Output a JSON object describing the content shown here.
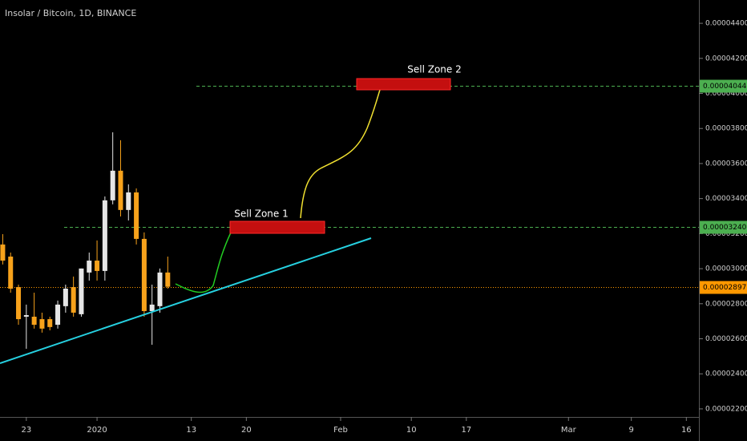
{
  "chart_data": {
    "type": "candlestick",
    "title": "Insolar / Bitcoin, 1D, BINANCE",
    "x": [
      -12,
      -11,
      -10,
      -9,
      -8,
      -7,
      -6,
      -5,
      -4,
      -3,
      -2,
      -1,
      0,
      1,
      2,
      3,
      4,
      5,
      6,
      7,
      8,
      9
    ],
    "open": [
      3.138e-05,
      3.069e-05,
      2.895e-05,
      2.726e-05,
      2.726e-05,
      2.712e-05,
      2.712e-05,
      2.68e-05,
      2.786e-05,
      2.895e-05,
      2.74e-05,
      2.978e-05,
      3.046e-05,
      2.987e-05,
      3.39e-05,
      3.559e-05,
      3.335e-05,
      3.435e-05,
      3.17e-05,
      2.758e-05,
      2.786e-05,
      2.978e-05
    ],
    "high": [
      3.197e-05,
      3.092e-05,
      2.909e-05,
      2.795e-05,
      2.863e-05,
      2.749e-05,
      2.726e-05,
      2.818e-05,
      2.909e-05,
      2.955e-05,
      3.001e-05,
      3.092e-05,
      3.161e-05,
      3.412e-05,
      3.778e-05,
      3.733e-05,
      3.481e-05,
      3.458e-05,
      3.207e-05,
      2.909e-05,
      3.001e-05,
      3.069e-05
    ],
    "low": [
      3.024e-05,
      2.863e-05,
      2.68e-05,
      2.543e-05,
      2.658e-05,
      2.635e-05,
      2.648e-05,
      2.658e-05,
      2.749e-05,
      2.726e-05,
      2.726e-05,
      2.932e-05,
      2.932e-05,
      2.932e-05,
      3.367e-05,
      3.298e-05,
      3.275e-05,
      3.138e-05,
      2.726e-05,
      2.566e-05,
      2.749e-05,
      2.886e-05
    ],
    "close": [
      3.046e-05,
      2.886e-05,
      2.712e-05,
      2.735e-05,
      2.68e-05,
      2.658e-05,
      2.667e-05,
      2.795e-05,
      2.886e-05,
      2.749e-05,
      3.001e-05,
      3.046e-05,
      2.987e-05,
      3.39e-05,
      3.559e-05,
      3.335e-05,
      3.435e-05,
      3.17e-05,
      2.758e-05,
      2.795e-05,
      2.978e-05,
      2.897e-05
    ],
    "up_color": "#e6e6e6",
    "down_color": "#f7a21b",
    "xlim": [
      -12.35,
      76.6
    ],
    "xticks": [
      {
        "value": -9,
        "label": "23"
      },
      {
        "value": 0,
        "label": "2020"
      },
      {
        "value": 12,
        "label": "13"
      },
      {
        "value": 19,
        "label": "20"
      },
      {
        "value": 31,
        "label": "Feb"
      },
      {
        "value": 40,
        "label": "10"
      },
      {
        "value": 47,
        "label": "17"
      },
      {
        "value": 60,
        "label": "Mar"
      },
      {
        "value": 68,
        "label": "9"
      },
      {
        "value": 75,
        "label": "16"
      }
    ],
    "ylim": [
      2.154e-05,
      4.533e-05
    ],
    "yticks": [
      {
        "value": 2.2e-05,
        "label": "0.00002200"
      },
      {
        "value": 2.4e-05,
        "label": "0.00002400"
      },
      {
        "value": 2.6e-05,
        "label": "0.00002600"
      },
      {
        "value": 2.8e-05,
        "label": "0.00002800"
      },
      {
        "value": 3e-05,
        "label": "0.00003000"
      },
      {
        "value": 3.2e-05,
        "label": "0.00003200"
      },
      {
        "value": 3.4e-05,
        "label": "0.00003400"
      },
      {
        "value": 3.6e-05,
        "label": "0.00003600"
      },
      {
        "value": 3.8e-05,
        "label": "0.00003800"
      },
      {
        "value": 4e-05,
        "label": "0.00004000"
      },
      {
        "value": 4.2e-05,
        "label": "0.00004200"
      },
      {
        "value": 4.4e-05,
        "label": "0.00004400"
      }
    ],
    "horizontal_lines": [
      {
        "value": 3.24e-05,
        "label": "0.00003240",
        "color": "#4caf50"
      },
      {
        "value": 4.044e-05,
        "label": "0.00004044",
        "color": "#4caf50"
      },
      {
        "value": 2.897e-05,
        "label": "0.00002897",
        "color": "#ff9800"
      }
    ],
    "annotations": [
      "Sell Zone 1",
      "Sell Zone 2"
    ]
  }
}
